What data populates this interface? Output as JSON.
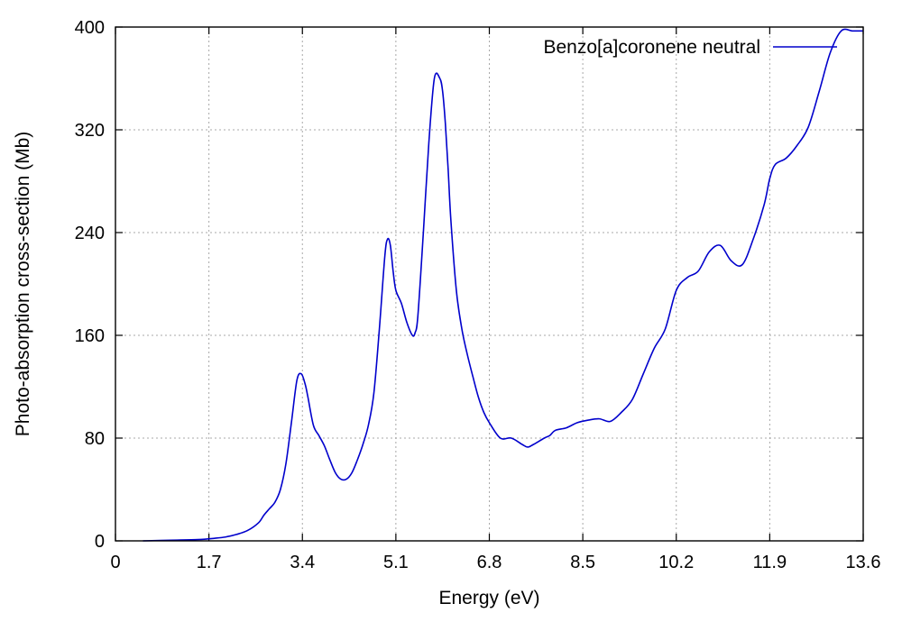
{
  "chart_data": {
    "type": "line",
    "title": "",
    "xlabel": "Energy (eV)",
    "ylabel": "Photo-absorption cross-section (Mb)",
    "xlim": [
      0,
      13.6
    ],
    "ylim": [
      0,
      400
    ],
    "xticks": [
      0,
      1.7,
      3.4,
      5.1,
      6.8,
      8.5,
      10.2,
      11.9,
      13.6
    ],
    "xtick_labels": [
      "0",
      "1.7",
      "3.4",
      "5.1",
      "6.8",
      "8.5",
      "10.2",
      "11.9",
      "13.6"
    ],
    "yticks": [
      0,
      80,
      160,
      240,
      320,
      400
    ],
    "ytick_labels": [
      "0",
      "80",
      "160",
      "240",
      "320",
      "400"
    ],
    "grid": true,
    "legend_position": "top-right",
    "series": [
      {
        "name": "Benzo[a]coronene neutral",
        "color": "#0000cc",
        "x": [
          0.5,
          1.0,
          1.5,
          1.8,
          2.0,
          2.2,
          2.4,
          2.6,
          2.7,
          2.8,
          2.9,
          3.0,
          3.1,
          3.2,
          3.3,
          3.38,
          3.45,
          3.5,
          3.6,
          3.7,
          3.8,
          3.9,
          4.0,
          4.1,
          4.2,
          4.3,
          4.4,
          4.5,
          4.6,
          4.7,
          4.8,
          4.9,
          4.95,
          5.0,
          5.05,
          5.1,
          5.2,
          5.3,
          5.4,
          5.45,
          5.5,
          5.6,
          5.7,
          5.8,
          5.9,
          5.95,
          6.0,
          6.05,
          6.1,
          6.2,
          6.3,
          6.4,
          6.5,
          6.6,
          6.7,
          6.8,
          7.0,
          7.2,
          7.4,
          7.5,
          7.6,
          7.8,
          7.9,
          8.0,
          8.2,
          8.4,
          8.6,
          8.8,
          9.0,
          9.2,
          9.4,
          9.6,
          9.8,
          10.0,
          10.2,
          10.4,
          10.6,
          10.8,
          11.0,
          11.2,
          11.4,
          11.6,
          11.8,
          11.9,
          12.0,
          12.2,
          12.4,
          12.6,
          12.8,
          13.0,
          13.2,
          13.4,
          13.5,
          13.6
        ],
        "y": [
          0,
          0.5,
          1,
          2,
          3,
          5,
          8,
          14,
          20,
          25,
          30,
          40,
          60,
          92,
          125,
          130,
          122,
          112,
          90,
          82,
          74,
          63,
          53,
          48,
          48,
          53,
          63,
          75,
          90,
          115,
          165,
          222,
          235,
          230,
          210,
          195,
          185,
          170,
          160,
          162,
          175,
          240,
          310,
          360,
          360,
          350,
          325,
          290,
          250,
          195,
          165,
          145,
          128,
          112,
          100,
          92,
          80,
          80,
          75,
          73,
          75,
          80,
          82,
          86,
          88,
          92,
          94,
          95,
          93,
          100,
          110,
          130,
          150,
          165,
          195,
          205,
          210,
          225,
          230,
          218,
          215,
          235,
          262,
          282,
          293,
          298,
          308,
          322,
          350,
          380,
          397,
          397,
          397,
          397
        ]
      }
    ]
  }
}
